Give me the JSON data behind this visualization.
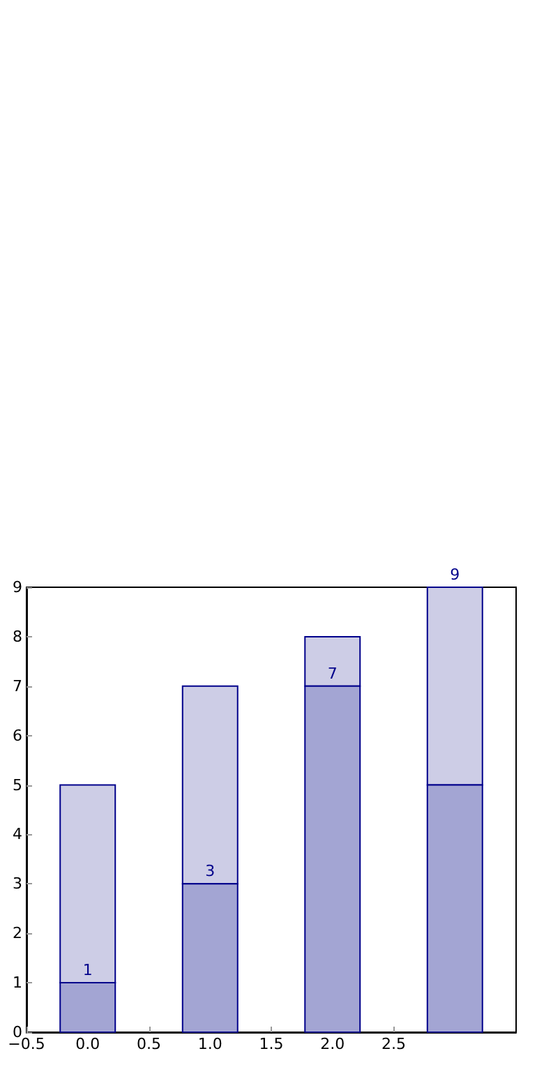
{
  "chart_data": {
    "type": "bar",
    "stacked": true,
    "x": [
      0,
      1,
      2,
      3
    ],
    "series": [
      {
        "color": "#a3a5d3",
        "values": [
          1,
          3,
          7,
          5
        ],
        "value_labels": [
          "1",
          "3",
          "7",
          null
        ]
      },
      {
        "color": "#cdcde6",
        "values": [
          4,
          4,
          1,
          4
        ]
      }
    ],
    "totals": [
      null,
      null,
      null,
      "9"
    ],
    "xlim": [
      -0.5,
      3.5
    ],
    "xticks": [
      {
        "value": -0.5,
        "label": "−0.5"
      },
      {
        "value": 0,
        "label": "0.0"
      },
      {
        "value": 0.5,
        "label": "0.5"
      },
      {
        "value": 1,
        "label": "1.0"
      },
      {
        "value": 1.5,
        "label": "1.5"
      },
      {
        "value": 2,
        "label": "2.0"
      },
      {
        "value": 2.5,
        "label": "2.5"
      }
    ],
    "ylim": [
      0,
      9
    ],
    "yticks": [
      0,
      1,
      2,
      3,
      4,
      5,
      6,
      7,
      8,
      9
    ],
    "grid": false
  }
}
